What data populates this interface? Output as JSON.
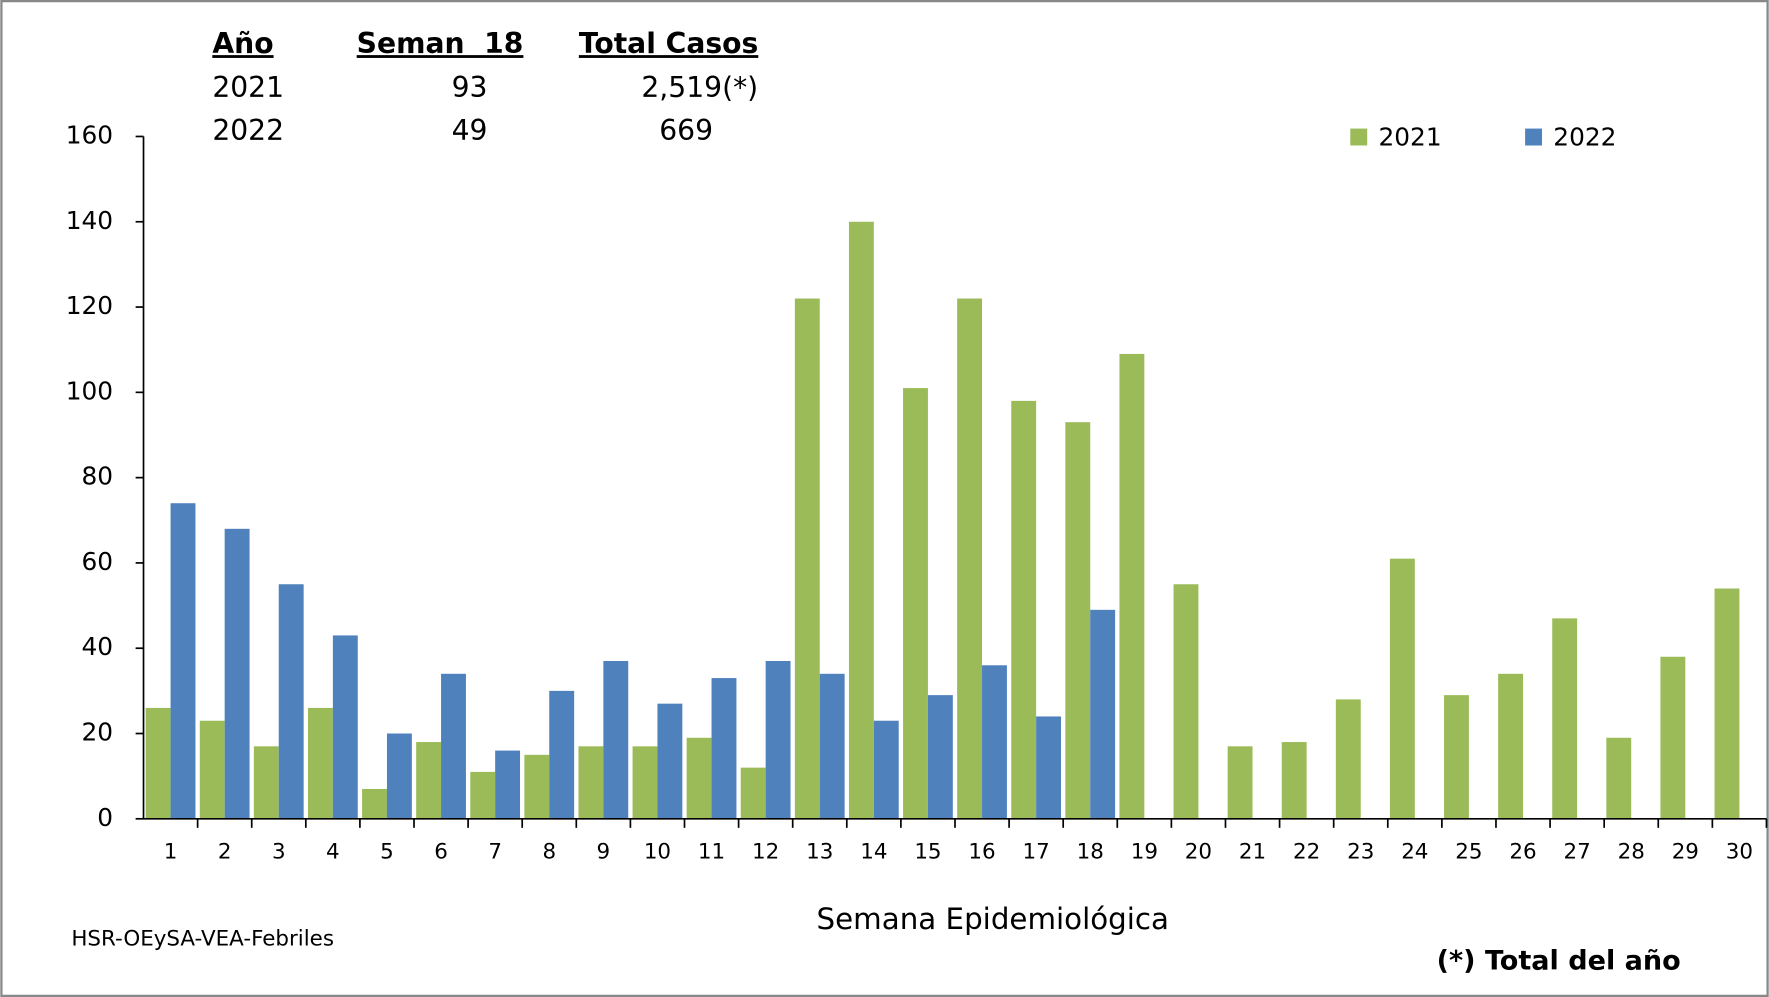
{
  "chart_data": {
    "type": "bar",
    "x_label": "Semana Epidemiológica",
    "source": "HSR-OEySA-VEA-Febriles",
    "footnote": "(*) Total del año",
    "summary_table": {
      "header": [
        "Año",
        "Seman  18",
        "Total Casos"
      ],
      "rows": [
        [
          "2021",
          "93",
          "2,519(*)"
        ],
        [
          "2022",
          "49",
          "669"
        ]
      ]
    },
    "categories": [
      "1",
      "2",
      "3",
      "4",
      "5",
      "6",
      "7",
      "8",
      "9",
      "10",
      "11",
      "12",
      "13",
      "14",
      "15",
      "16",
      "17",
      "18",
      "19",
      "20",
      "21",
      "22",
      "23",
      "24",
      "25",
      "26",
      "27",
      "28",
      "29",
      "30"
    ],
    "series": [
      {
        "name": "2021",
        "color": "#9bbb59",
        "values": [
          26,
          23,
          17,
          26,
          7,
          18,
          11,
          15,
          17,
          17,
          19,
          12,
          122,
          140,
          101,
          122,
          98,
          93,
          109,
          55,
          17,
          18,
          28,
          61,
          29,
          34,
          47,
          19,
          38,
          54
        ]
      },
      {
        "name": "2022",
        "color": "#4f81bd",
        "values": [
          74,
          68,
          55,
          43,
          20,
          34,
          16,
          30,
          37,
          27,
          33,
          37,
          34,
          23,
          29,
          36,
          24,
          49,
          null,
          null,
          null,
          null,
          null,
          null,
          null,
          null,
          null,
          null,
          null,
          null
        ]
      }
    ],
    "ylim": [
      0,
      160
    ],
    "yticks": [
      0,
      20,
      40,
      60,
      80,
      100,
      120,
      140,
      160
    ],
    "grid": false,
    "legend": "top-right"
  }
}
